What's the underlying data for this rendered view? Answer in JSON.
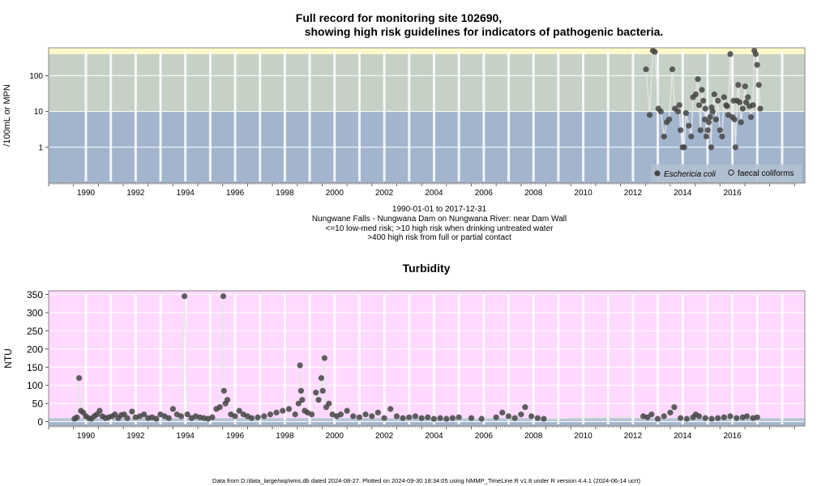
{
  "chart_data": [
    {
      "type": "scatter",
      "title": "Full record for monitoring site 102690,",
      "subtitle": "showing high risk guidelines for indicators of pathogenic bacteria.",
      "ylabel": "/100mL or MPN",
      "y_scale": "log",
      "ylim": [
        0.1,
        600
      ],
      "xlim": [
        "1989-01-01",
        "2019-06-01"
      ],
      "x_tick_labels": [
        "1990",
        "1992",
        "1994",
        "1996",
        "1998",
        "2000",
        "2002",
        "2004",
        "2006",
        "2008",
        "2010",
        "2012",
        "2014",
        "2016"
      ],
      "y_tick_labels": [
        "1",
        "10",
        "100"
      ],
      "y_ticks": [
        1,
        10,
        100
      ],
      "grid": true,
      "bands": [
        {
          "from": 0.1,
          "to": 10,
          "color": "#a2b5cd",
          "meaning": "<=10 low-med risk"
        },
        {
          "from": 10,
          "to": 400,
          "color": "#c5d1c4",
          "meaning": ">10 high risk when drinking untreated water"
        },
        {
          "from": 400,
          "to": 600,
          "color": "#fff8c8",
          "meaning": ">400 high risk from full or partial contact"
        }
      ],
      "legend": {
        "position": "bottom-right",
        "entries": [
          "Eschericia coli",
          "faecal coliforms"
        ]
      },
      "series": [
        {
          "name": "Eschericia coli",
          "marker": "filled-circle",
          "color": "#444444",
          "points": [
            [
              "2013-01-10",
              150
            ],
            [
              "2013-03-05",
              8
            ],
            [
              "2013-04-20",
              500
            ],
            [
              "2013-05-20",
              460
            ],
            [
              "2013-07-10",
              12
            ],
            [
              "2013-08-15",
              10
            ],
            [
              "2013-10-01",
              2
            ],
            [
              "2013-11-10",
              5
            ],
            [
              "2013-12-15",
              6
            ],
            [
              "2014-02-01",
              150
            ],
            [
              "2014-03-10",
              12
            ],
            [
              "2014-04-25",
              10
            ],
            [
              "2014-06-01",
              3
            ],
            [
              "2014-07-01",
              1
            ],
            [
              "2014-07-25",
              1
            ],
            [
              "2014-08-20",
              9
            ],
            [
              "2014-10-01",
              4
            ],
            [
              "2014-11-05",
              2
            ],
            [
              "2014-12-01",
              25
            ],
            [
              "2015-01-10",
              30
            ],
            [
              "2015-02-10",
              80
            ],
            [
              "2015-03-01",
              15
            ],
            [
              "2015-03-20",
              3
            ],
            [
              "2015-04-10",
              40
            ],
            [
              "2015-05-01",
              20
            ],
            [
              "2015-05-25",
              6
            ],
            [
              "2015-06-15",
              2
            ],
            [
              "2015-07-05",
              3
            ],
            [
              "2015-07-20",
              5
            ],
            [
              "2015-08-10",
              7
            ],
            [
              "2015-08-25",
              1
            ],
            [
              "2015-09-15",
              10
            ],
            [
              "2015-10-10",
              30
            ],
            [
              "2015-11-05",
              6
            ],
            [
              "2015-12-01",
              20
            ],
            [
              "2016-01-01",
              3
            ],
            [
              "2016-02-01",
              2
            ],
            [
              "2016-03-01",
              25
            ],
            [
              "2016-04-01",
              15
            ],
            [
              "2016-05-01",
              8
            ],
            [
              "2016-06-01",
              400
            ],
            [
              "2016-07-01",
              7
            ],
            [
              "2016-07-20",
              20
            ],
            [
              "2016-08-15",
              1
            ],
            [
              "2016-09-10",
              20
            ],
            [
              "2016-09-25",
              55
            ],
            [
              "2016-10-15",
              18
            ],
            [
              "2016-11-05",
              5
            ],
            [
              "2016-12-01",
              12
            ],
            [
              "2017-01-05",
              50
            ],
            [
              "2017-01-20",
              18
            ],
            [
              "2017-02-15",
              25
            ],
            [
              "2017-03-10",
              14
            ],
            [
              "2017-04-01",
              7
            ],
            [
              "2017-05-01",
              15
            ],
            [
              "2017-05-20",
              500
            ],
            [
              "2017-06-10",
              400
            ],
            [
              "2017-07-01",
              200
            ],
            [
              "2017-07-25",
              55
            ],
            [
              "2017-08-15",
              12
            ],
            [
              "2015-09-01",
              13
            ],
            [
              "2016-04-15",
              14
            ],
            [
              "2016-08-01",
              6
            ],
            [
              "2014-05-15",
              15
            ],
            [
              "2015-06-01",
              12
            ]
          ]
        },
        {
          "name": "faecal coliforms",
          "marker": "open-circle",
          "color": "#444444",
          "points": []
        }
      ],
      "annotations": [
        "1990-01-01 to 2017-12-31",
        "Nungwane Falls - Nungwana Dam on Nungwana River: near Dam Wall",
        "<=10 low-med risk; >10 high risk when drinking untreated water",
        ">400 high risk from full or partial contact"
      ]
    },
    {
      "type": "scatter",
      "title": "Turbidity",
      "ylabel": "NTU",
      "ylim": [
        -12,
        360
      ],
      "xlim": [
        "1989-01-01",
        "2019-06-01"
      ],
      "x_tick_labels": [
        "1990",
        "1992",
        "1994",
        "1996",
        "1998",
        "2000",
        "2002",
        "2004",
        "2006",
        "2008",
        "2010",
        "2012",
        "2014",
        "2016"
      ],
      "y_tick_labels": [
        "0",
        "50",
        "100",
        "150",
        "200",
        "250",
        "300",
        "350"
      ],
      "y_ticks": [
        0,
        50,
        100,
        150,
        200,
        250,
        300,
        350
      ],
      "grid": true,
      "bands": [
        {
          "from": -12,
          "to": 1,
          "color": "#a2b5cd"
        },
        {
          "from": 1,
          "to": 10,
          "color": "#b6c5d5"
        },
        {
          "from": 10,
          "to": 360,
          "color": "#ffd9ff"
        }
      ],
      "series": [
        {
          "name": "Turbidity",
          "marker": "filled-circle",
          "color": "#444444",
          "points": [
            [
              "1990-01-15",
              8
            ],
            [
              "1990-02-20",
              12
            ],
            [
              "1990-03-25",
              120
            ],
            [
              "1990-04-20",
              30
            ],
            [
              "1990-05-25",
              25
            ],
            [
              "1990-07-01",
              15
            ],
            [
              "1990-08-10",
              10
            ],
            [
              "1990-09-20",
              8
            ],
            [
              "1990-11-01",
              15
            ],
            [
              "1990-12-10",
              20
            ],
            [
              "1991-01-20",
              30
            ],
            [
              "1991-03-01",
              15
            ],
            [
              "1991-04-15",
              10
            ],
            [
              "1991-06-01",
              12
            ],
            [
              "1991-07-20",
              15
            ],
            [
              "1991-09-01",
              20
            ],
            [
              "1991-10-20",
              10
            ],
            [
              "1991-12-01",
              18
            ],
            [
              "1992-01-15",
              20
            ],
            [
              "1992-03-01",
              10
            ],
            [
              "1992-05-10",
              28
            ],
            [
              "1992-07-01",
              12
            ],
            [
              "1992-09-01",
              15
            ],
            [
              "1992-11-01",
              20
            ],
            [
              "1993-01-01",
              10
            ],
            [
              "1993-03-01",
              12
            ],
            [
              "1993-05-01",
              8
            ],
            [
              "1993-07-01",
              20
            ],
            [
              "1993-09-01",
              15
            ],
            [
              "1993-11-01",
              10
            ],
            [
              "1994-01-01",
              35
            ],
            [
              "1994-03-01",
              20
            ],
            [
              "1994-05-01",
              15
            ],
            [
              "1994-06-20",
              345
            ],
            [
              "1994-08-01",
              20
            ],
            [
              "1994-10-01",
              10
            ],
            [
              "1994-12-01",
              15
            ],
            [
              "1995-02-01",
              12
            ],
            [
              "1995-04-01",
              10
            ],
            [
              "1995-06-01",
              8
            ],
            [
              "1995-08-01",
              12
            ],
            [
              "1995-10-01",
              35
            ],
            [
              "1995-11-20",
              40
            ],
            [
              "1996-01-10",
              345
            ],
            [
              "1996-01-20",
              85
            ],
            [
              "1996-02-10",
              50
            ],
            [
              "1996-03-10",
              60
            ],
            [
              "1996-05-01",
              20
            ],
            [
              "1996-07-01",
              15
            ],
            [
              "1996-09-01",
              30
            ],
            [
              "1996-11-01",
              20
            ],
            [
              "1997-01-01",
              15
            ],
            [
              "1997-03-01",
              10
            ],
            [
              "1997-06-01",
              12
            ],
            [
              "1997-09-01",
              15
            ],
            [
              "1997-12-01",
              20
            ],
            [
              "1998-03-01",
              25
            ],
            [
              "1998-06-01",
              30
            ],
            [
              "1998-09-01",
              35
            ],
            [
              "1998-12-01",
              20
            ],
            [
              "1999-01-20",
              50
            ],
            [
              "1999-02-10",
              155
            ],
            [
              "1999-02-25",
              85
            ],
            [
              "1999-03-15",
              60
            ],
            [
              "1999-04-20",
              30
            ],
            [
              "1999-06-01",
              25
            ],
            [
              "1999-08-01",
              20
            ],
            [
              "1999-10-01",
              80
            ],
            [
              "1999-11-10",
              60
            ],
            [
              "1999-12-20",
              120
            ],
            [
              "2000-01-10",
              85
            ],
            [
              "2000-02-05",
              175
            ],
            [
              "2000-03-01",
              40
            ],
            [
              "2000-04-10",
              50
            ],
            [
              "2000-06-01",
              20
            ],
            [
              "2000-08-01",
              15
            ],
            [
              "2000-10-01",
              20
            ],
            [
              "2001-01-01",
              30
            ],
            [
              "2001-04-01",
              15
            ],
            [
              "2001-07-01",
              12
            ],
            [
              "2001-10-01",
              20
            ],
            [
              "2002-01-01",
              15
            ],
            [
              "2002-04-01",
              25
            ],
            [
              "2002-07-01",
              10
            ],
            [
              "2002-10-01",
              35
            ],
            [
              "2003-01-01",
              15
            ],
            [
              "2003-04-01",
              10
            ],
            [
              "2003-07-01",
              12
            ],
            [
              "2003-10-01",
              15
            ],
            [
              "2004-01-01",
              10
            ],
            [
              "2004-04-01",
              12
            ],
            [
              "2004-07-01",
              8
            ],
            [
              "2004-10-01",
              10
            ],
            [
              "2005-01-01",
              8
            ],
            [
              "2005-04-01",
              10
            ],
            [
              "2005-07-01",
              12
            ],
            [
              "2006-01-01",
              10
            ],
            [
              "2006-06-01",
              8
            ],
            [
              "2007-01-01",
              12
            ],
            [
              "2007-04-01",
              25
            ],
            [
              "2007-07-01",
              15
            ],
            [
              "2007-10-01",
              10
            ],
            [
              "2008-01-01",
              20
            ],
            [
              "2008-03-01",
              40
            ],
            [
              "2008-06-01",
              15
            ],
            [
              "2008-09-01",
              10
            ],
            [
              "2008-12-01",
              8
            ],
            [
              "2012-12-01",
              15
            ],
            [
              "2013-02-01",
              12
            ],
            [
              "2013-04-01",
              20
            ],
            [
              "2013-07-01",
              8
            ],
            [
              "2013-10-01",
              15
            ],
            [
              "2014-01-01",
              25
            ],
            [
              "2014-03-01",
              40
            ],
            [
              "2014-06-01",
              10
            ],
            [
              "2014-09-01",
              8
            ],
            [
              "2014-12-01",
              12
            ],
            [
              "2015-01-10",
              20
            ],
            [
              "2015-03-01",
              15
            ],
            [
              "2015-06-01",
              10
            ],
            [
              "2015-09-01",
              8
            ],
            [
              "2015-12-01",
              10
            ],
            [
              "2016-03-01",
              12
            ],
            [
              "2016-06-01",
              15
            ],
            [
              "2016-09-01",
              10
            ],
            [
              "2016-12-01",
              12
            ],
            [
              "2017-02-01",
              15
            ],
            [
              "2017-05-01",
              10
            ],
            [
              "2017-07-01",
              12
            ]
          ]
        }
      ]
    }
  ],
  "captions": {
    "line1": "1990-01-01 to 2017-12-31",
    "line2": "Nungwane Falls - Nungwana Dam on Nungwana River: near Dam Wall",
    "line3": "<=10 low-med risk; >10 high risk when drinking untreated water",
    "line4": ">400 high risk from full or partial contact"
  },
  "footer": "Data from D:/data_large/wq/wms.db dated 2024-08-27. Plotted on 2024-09-30 18:34:05 using NMMP_TimeLine.R v1.8 under R version 4.4.1 (2024-06-14 ucrt)",
  "colors": {
    "band_low": "#a2b5cd",
    "band_mid": "#c5d1c4",
    "band_high": "#fff8c8",
    "turbidity_bg": "#ffd9ff",
    "point": "#444444"
  }
}
